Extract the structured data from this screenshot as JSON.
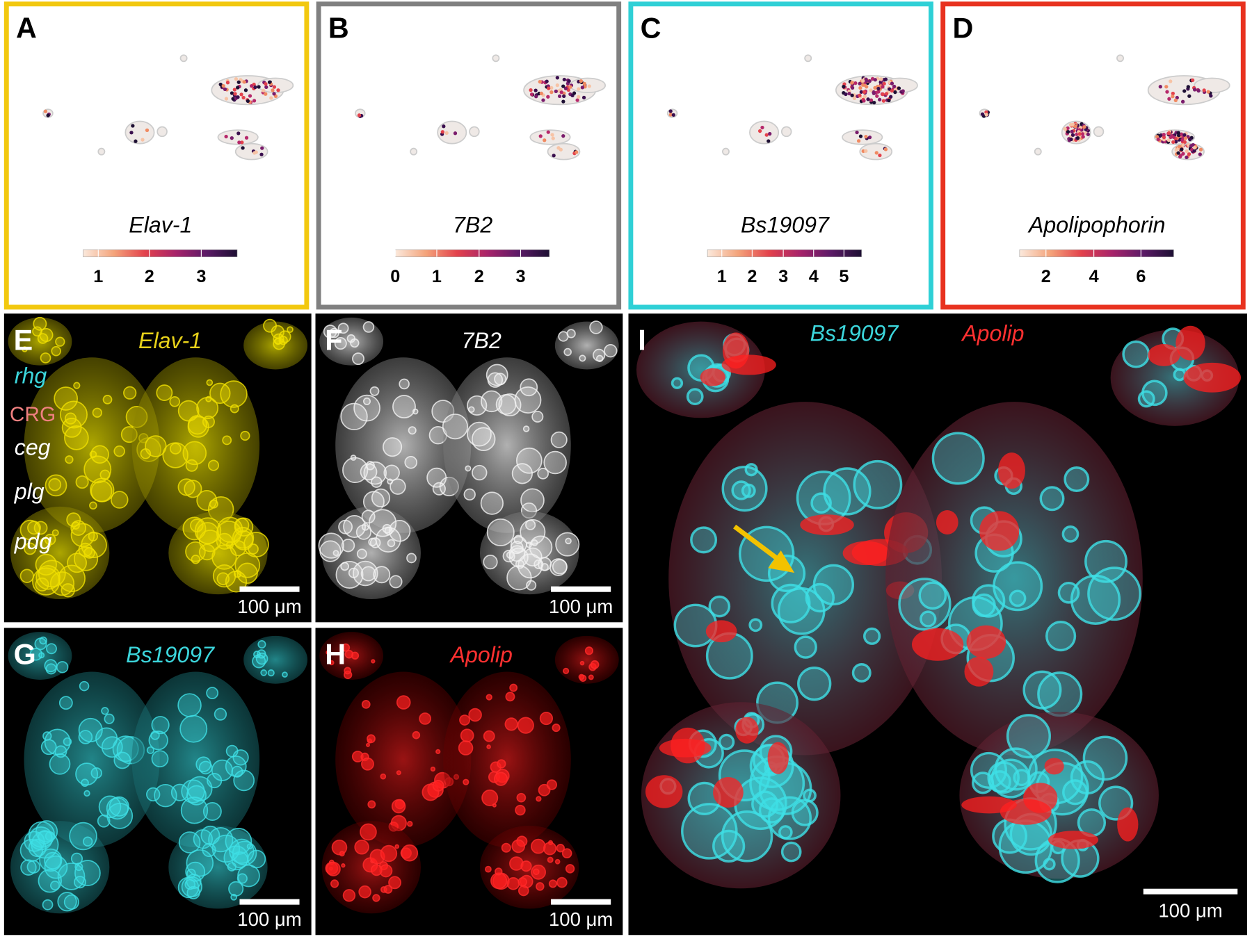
{
  "umap_panels": [
    {
      "letter": "A",
      "gene": "Elav-1",
      "colorbar_ticks": [
        1,
        2,
        3
      ]
    },
    {
      "letter": "B",
      "gene": "7B2",
      "colorbar_ticks": [
        0,
        1,
        2,
        3
      ]
    },
    {
      "letter": "C",
      "gene": "Bs19097",
      "colorbar_ticks": [
        1,
        2,
        3,
        4,
        5
      ]
    },
    {
      "letter": "D",
      "gene": "Apolipophorin",
      "colorbar_ticks": [
        2,
        4,
        6
      ]
    }
  ],
  "image_panels": [
    {
      "letter": "E",
      "stain": "Elav-1",
      "scale_bar": "100 μm"
    },
    {
      "letter": "F",
      "stain": "7B2",
      "scale_bar": "100 μm"
    },
    {
      "letter": "G",
      "stain": "Bs19097",
      "scale_bar": "100 μm"
    },
    {
      "letter": "H",
      "stain": "Apolip",
      "scale_bar": "100 μm"
    },
    {
      "letter": "I",
      "stains": [
        "Bs19097",
        "Apolip"
      ],
      "scale_bar": "100 μm"
    }
  ],
  "region_labels": [
    "rhg",
    "CRG",
    "ceg",
    "plg",
    "pdg"
  ]
}
